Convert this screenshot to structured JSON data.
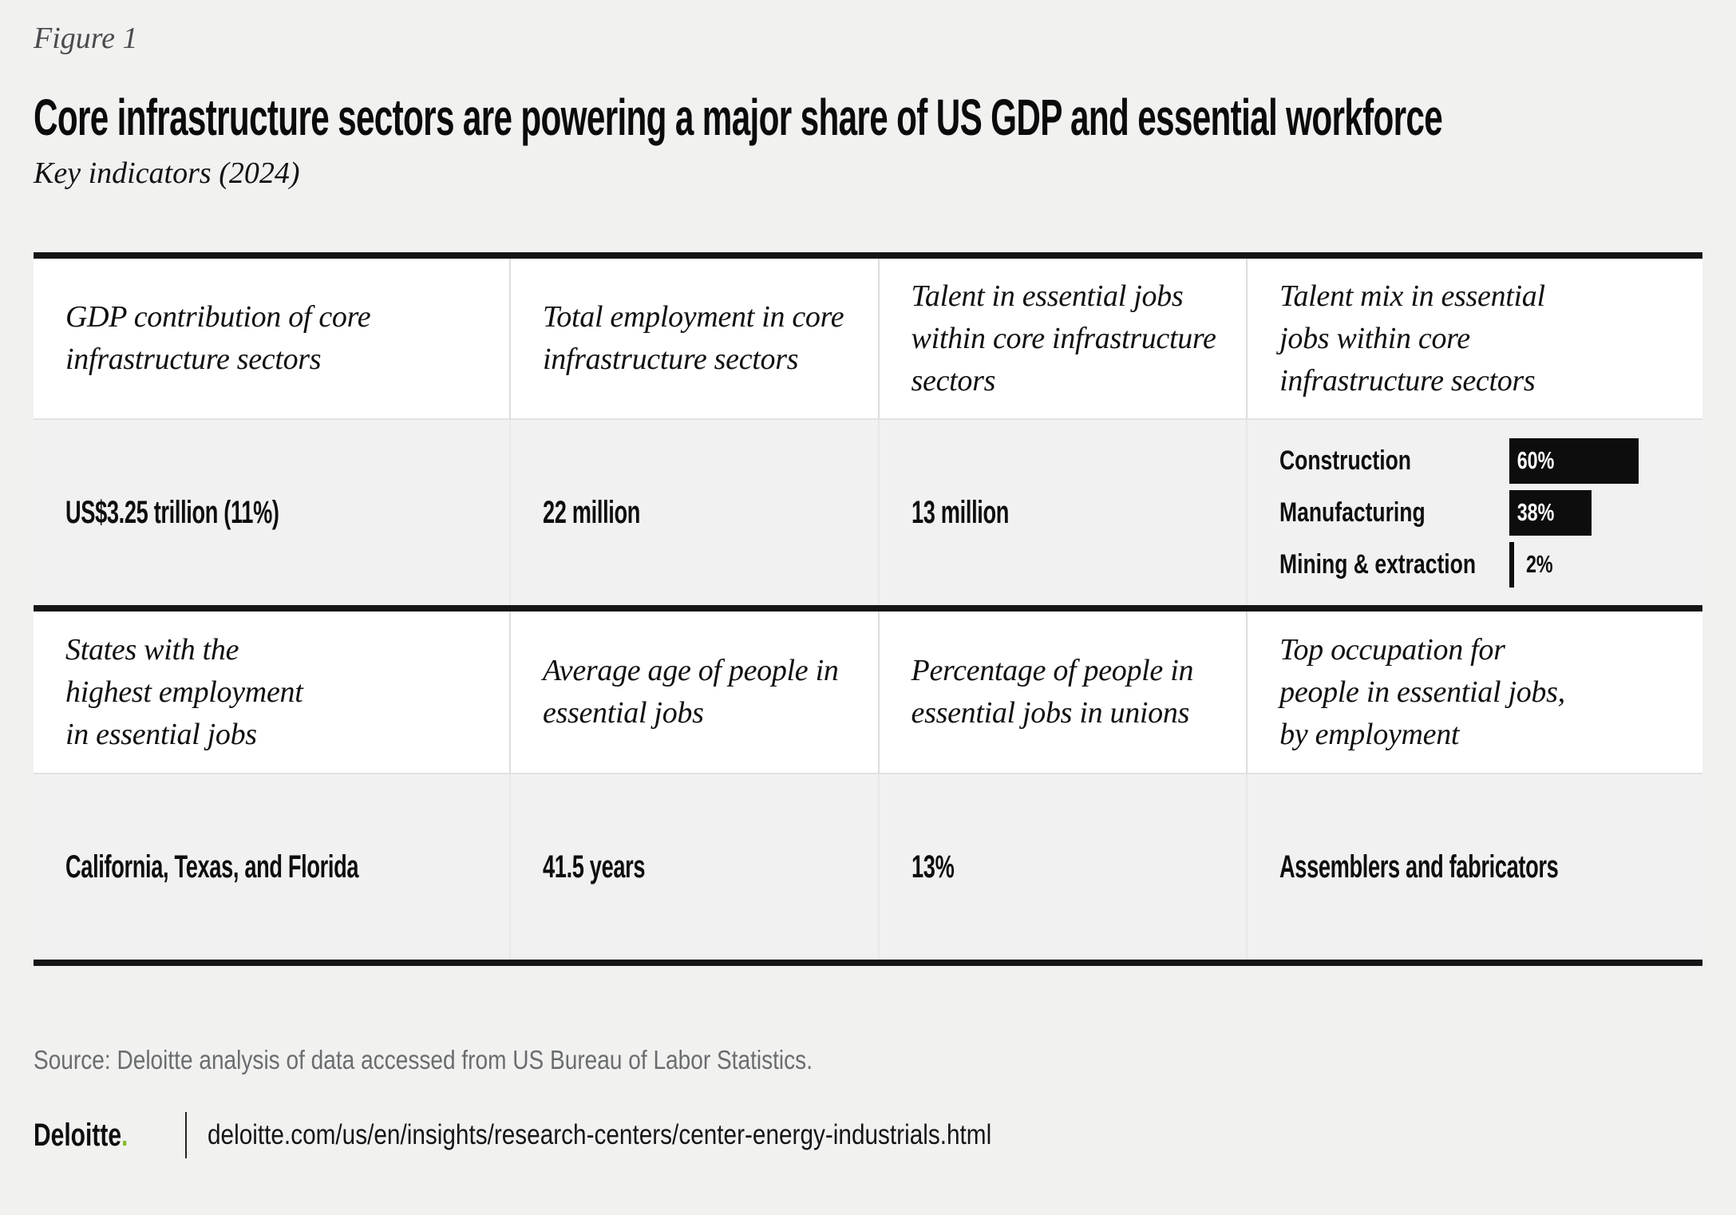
{
  "page": {
    "figure_label": "Figure 1",
    "title": "Core infrastructure sectors are powering a major share of US GDP and essential workforce",
    "subtitle": "Key indicators (2024)",
    "source": "Source: Deloitte analysis of data accessed from US Bureau of Labor Statistics.",
    "footer": {
      "brand": "Deloitte",
      "brand_dot": ".",
      "url": "deloitte.com/us/en/insights/research-centers/center-energy-industrials.html"
    }
  },
  "colors": {
    "accent_green": "#86bc25",
    "bar_black": "#0d0d0d",
    "page_bg": "#f1f1f0",
    "header_cell_bg": "#ffffff",
    "value_cell_bg": "#f1f1f2"
  },
  "chart_data": [
    {
      "type": "table",
      "title": "Core infrastructure sectors are powering a major share of US GDP and essential workforce",
      "subtitle": "Key indicators (2024)",
      "columns": 4,
      "cells": [
        {
          "label": "GDP contribution of core\ninfrastructure sectors",
          "value": "US$3.25 trillion (11%)"
        },
        {
          "label": "Total employment in core\ninfrastructure sectors",
          "value": "22 million"
        },
        {
          "label": "Talent in essential jobs\nwithin core infrastructure\nsectors",
          "value": "13 million"
        },
        {
          "label": "Talent mix in essential\njobs within core\ninfrastructure sectors",
          "value": "Construction 60%, Manufacturing 38%, Mining & extraction 2%"
        },
        {
          "label": "States with the\nhighest employment\nin essential jobs",
          "value": "California, Texas, and Florida"
        },
        {
          "label": "Average age of people in\nessential jobs",
          "value": "41.5 years"
        },
        {
          "label": "Percentage of people in\nessential jobs in unions",
          "value": "13%"
        },
        {
          "label": "Top occupation for\npeople in essential jobs,\nby employment",
          "value": "Assemblers and fabricators"
        }
      ]
    },
    {
      "type": "bar",
      "title": "Talent mix in essential jobs within core infrastructure sectors",
      "orientation": "horizontal",
      "categories": [
        "Construction",
        "Manufacturing",
        "Mining & extraction"
      ],
      "values": [
        60,
        38,
        2
      ],
      "value_labels": [
        "60%",
        "38%",
        "2%"
      ],
      "unit": "%",
      "xlim": [
        0,
        60
      ],
      "bar_color": "#0d0d0d",
      "grid": false,
      "legend": false
    }
  ]
}
